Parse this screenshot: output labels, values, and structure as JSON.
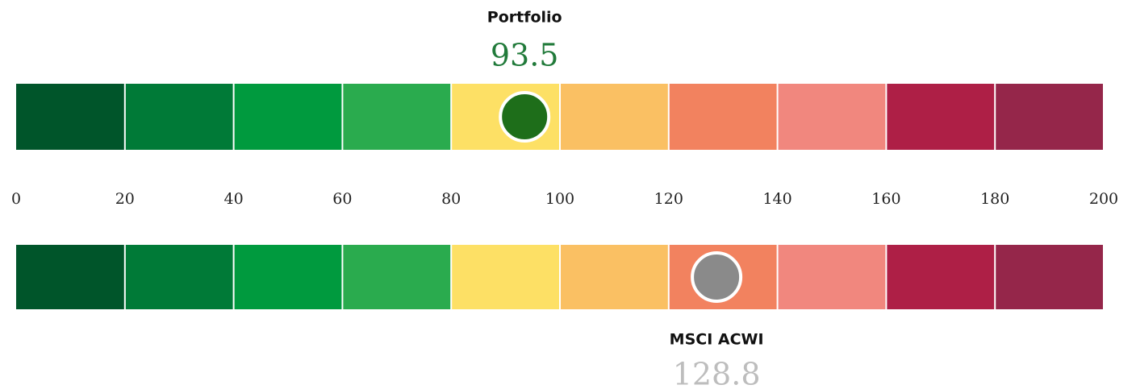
{
  "chart_data": {
    "type": "gauge",
    "xlim": [
      0,
      200
    ],
    "xticks": [
      0,
      20,
      40,
      60,
      80,
      100,
      120,
      140,
      160,
      180,
      200
    ],
    "band_colors": [
      "#00552a",
      "#007a37",
      "#009a3e",
      "#2aab4e",
      "#fde065",
      "#fac063",
      "#f2825f",
      "#f1877e",
      "#ae1f46",
      "#95264a"
    ],
    "series": [
      {
        "name": "Portfolio",
        "color": "#1e6e1a",
        "label_color": "#217a3a",
        "values": [
          93.5
        ]
      },
      {
        "name": "MSCI ACWI",
        "color": "#8a8a8a",
        "label_color": "#bdbdbd",
        "values": [
          128.8
        ]
      }
    ]
  }
}
